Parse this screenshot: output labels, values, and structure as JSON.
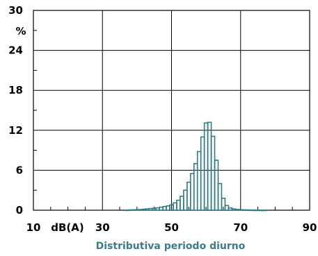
{
  "chart_data": {
    "type": "bar",
    "title": "Distributiva periodo diurno",
    "xlabel": "dB(A)",
    "ylabel": "%",
    "xlim": [
      10,
      90
    ],
    "ylim": [
      0,
      30
    ],
    "x_ticks": [
      10,
      30,
      50,
      70,
      90
    ],
    "y_ticks": [
      0,
      6,
      12,
      18,
      24,
      30
    ],
    "grid": true,
    "bar_width": 1,
    "bar_color": "#2f7a86",
    "title_color": "#3a7d8a",
    "x": [
      37,
      38,
      39,
      40,
      41,
      42,
      43,
      44,
      45,
      46,
      47,
      48,
      49,
      50,
      51,
      52,
      53,
      54,
      55,
      56,
      57,
      58,
      59,
      60,
      61,
      62,
      63,
      64,
      65,
      66,
      67,
      68,
      69,
      70,
      71,
      72,
      73,
      74,
      75,
      76,
      77
    ],
    "values": [
      0.02,
      0.04,
      0.06,
      0.08,
      0.1,
      0.15,
      0.2,
      0.25,
      0.3,
      0.35,
      0.45,
      0.55,
      0.65,
      0.8,
      1.1,
      1.5,
      2.1,
      3.0,
      4.2,
      5.5,
      7.0,
      8.8,
      11.0,
      13.1,
      13.2,
      11.1,
      7.5,
      4.0,
      1.8,
      0.7,
      0.35,
      0.2,
      0.12,
      0.08,
      0.05,
      0.04,
      0.03,
      0.02,
      0.02,
      0.01,
      0.01
    ]
  }
}
